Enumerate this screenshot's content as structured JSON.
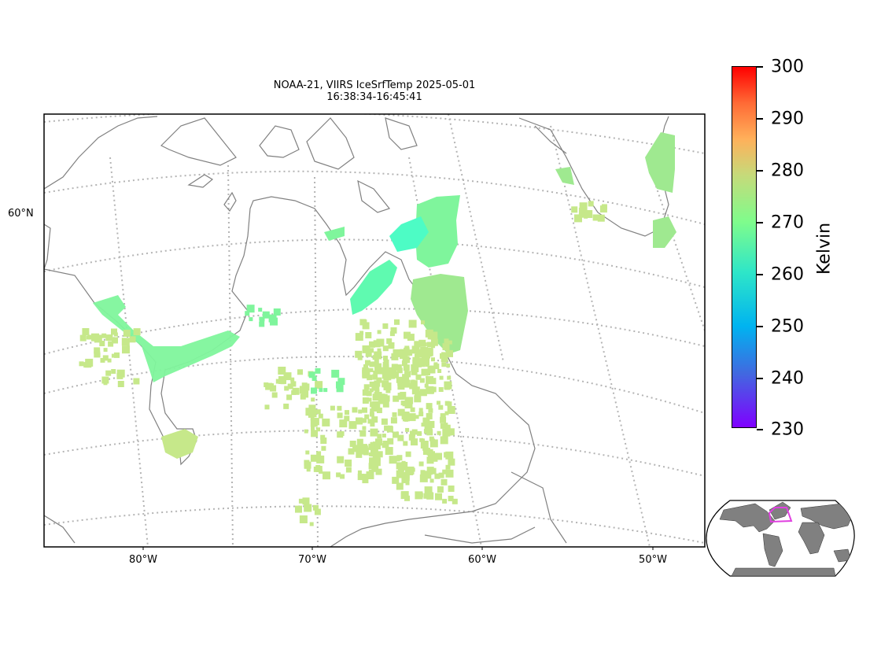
{
  "title": {
    "line1": "NOAA-21, VIIRS IceSrfTemp 2025-05-01",
    "line2": "16:38:34-16:45:41"
  },
  "map": {
    "lon_labels": [
      "80°W",
      "70°W",
      "60°W",
      "50°W"
    ],
    "lat_labels": [
      "60°N"
    ],
    "coastline_color": "#808080",
    "gridline_color": "#b4b4b4",
    "ice_temperature_colors": {
      "cold": "#4dfcc5",
      "mid": "#7ff59c",
      "warm": "#c6e88a"
    }
  },
  "colorbar": {
    "unit": "Kelvin",
    "ticks": [
      "300",
      "290",
      "280",
      "270",
      "260",
      "250",
      "240",
      "230"
    ],
    "range": [
      230,
      300
    ],
    "colormap": "rainbow"
  },
  "inset": {
    "name": "world-locator-map",
    "highlight_color": "#e040e0",
    "land_color": "#808080"
  }
}
